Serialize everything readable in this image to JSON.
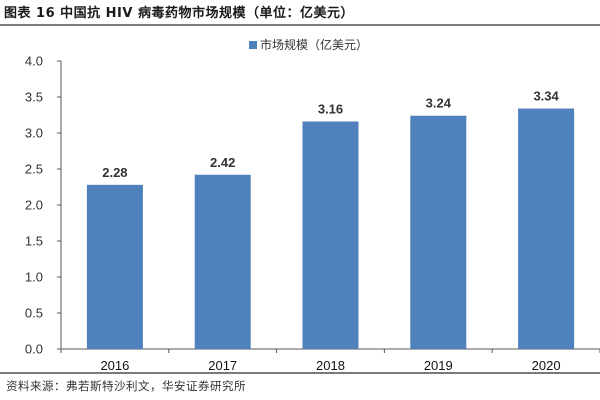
{
  "title": "图表 16  中国抗 HIV 病毒药物市场规模（单位：亿美元）",
  "source": "资料来源：弗若斯特沙利文，华安证券研究所",
  "legend": {
    "label": "市场规模（亿美元）",
    "color": "#4F81BD"
  },
  "colors": {
    "bar": "#4F81BD",
    "axis": "#595959",
    "text": "#333333"
  },
  "chart_data": {
    "type": "bar",
    "title": "中国抗 HIV 病毒药物市场规模（单位：亿美元）",
    "xlabel": "",
    "ylabel": "",
    "categories": [
      "2016",
      "2017",
      "2018",
      "2019",
      "2020"
    ],
    "series": [
      {
        "name": "市场规模（亿美元）",
        "values": [
          2.28,
          2.42,
          3.16,
          3.24,
          3.34
        ]
      }
    ],
    "value_labels": [
      "2.28",
      "2.42",
      "3.16",
      "3.24",
      "3.34"
    ],
    "ylim": [
      0,
      4.0
    ],
    "yticks": [
      "0.0",
      "0.5",
      "1.0",
      "1.5",
      "2.0",
      "2.5",
      "3.0",
      "3.5",
      "4.0"
    ],
    "grid": false,
    "legend_position": "top"
  }
}
